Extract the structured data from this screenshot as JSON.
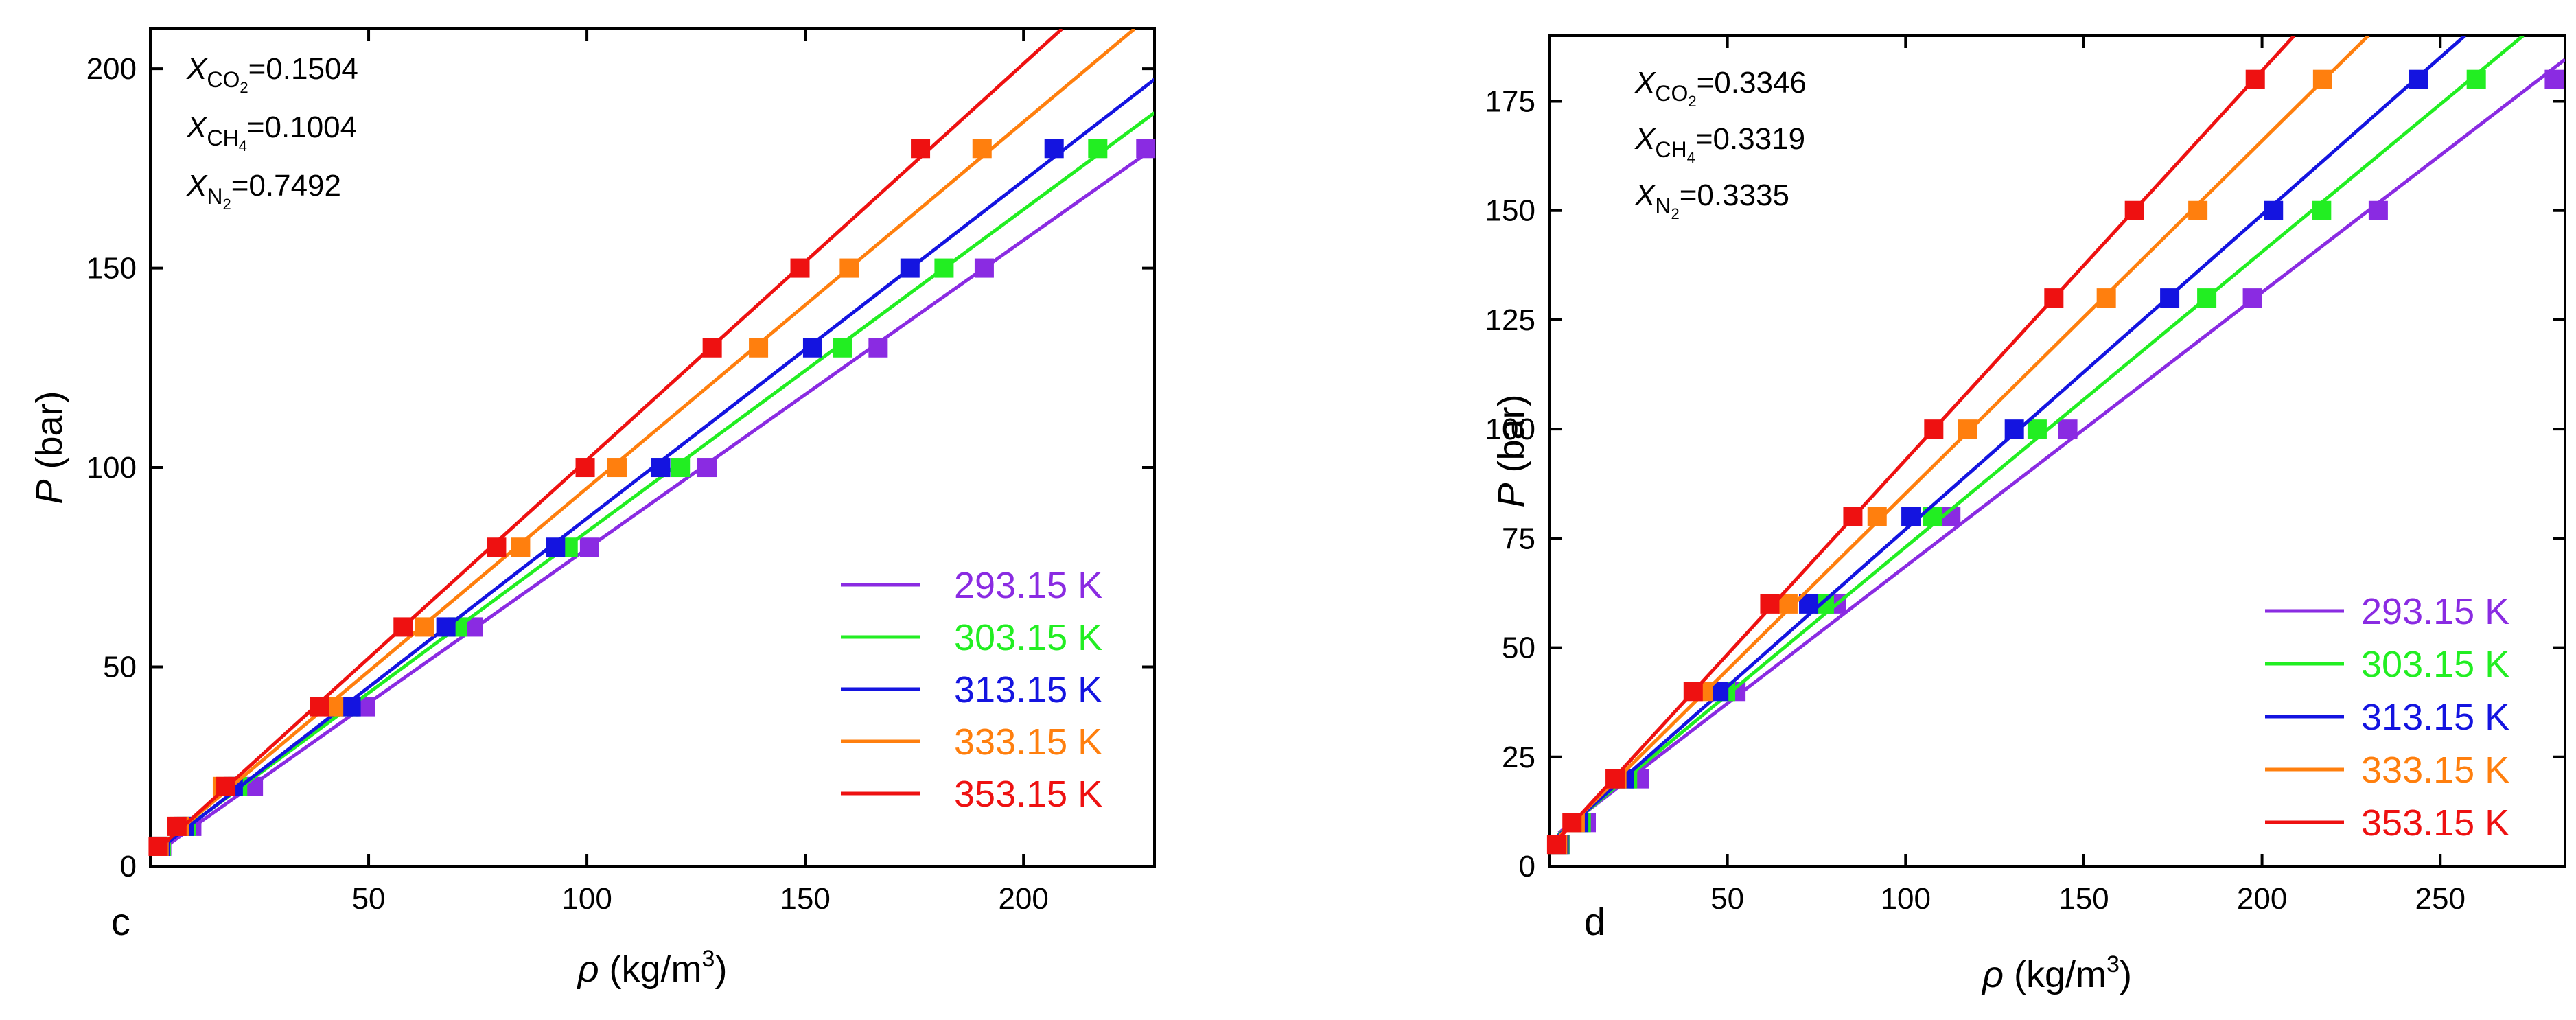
{
  "chart_data": [
    {
      "type": "scatter",
      "panel": "c",
      "xlabel_symbol": "ρ",
      "xlabel_unit": " (kg/m",
      "xlabel_exp": "3",
      "xlabel_close": ")",
      "ylabel_symbol": "P",
      "ylabel_unit": " (bar)",
      "xlim": [
        0,
        230
      ],
      "ylim": [
        0,
        210
      ],
      "xticks": [
        50,
        100,
        150,
        200
      ],
      "yticks": [
        0,
        50,
        100,
        150,
        200
      ],
      "composition": [
        {
          "sub": "CO",
          "sub2": "2",
          "value": "=0.1504"
        },
        {
          "sub": "CH",
          "sub2": "4",
          "value": "=0.1004"
        },
        {
          "sub": "N",
          "sub2": "2",
          "value": "=0.7492"
        }
      ],
      "series": [
        {
          "name": "293.15 K",
          "color": "#8a2be2",
          "x": [
            2.6,
            9.5,
            23.6,
            49.3,
            73.9,
            100.6,
            127.5,
            166.7,
            191.0,
            228.0
          ],
          "y": [
            5,
            10,
            20,
            40,
            60,
            80,
            100,
            130,
            150,
            180
          ]
        },
        {
          "name": "303.15 K",
          "color": "#22ee22",
          "x": [
            2.5,
            8.3,
            20.0,
            45.5,
            70.3,
            95.7,
            121.4,
            158.6,
            181.8,
            217.0
          ],
          "y": [
            5,
            10,
            20,
            40,
            60,
            80,
            100,
            130,
            150,
            180
          ]
        },
        {
          "name": "313.15 K",
          "color": "#1414e0",
          "x": [
            2.3,
            7.7,
            19.0,
            46.0,
            67.7,
            92.8,
            116.9,
            151.7,
            174.0,
            207.0
          ],
          "y": [
            5,
            10,
            20,
            40,
            60,
            80,
            100,
            130,
            150,
            180
          ]
        },
        {
          "name": "333.15 K",
          "color": "#ff7f0e",
          "x": [
            2.0,
            6.6,
            16.5,
            42.0,
            62.8,
            84.8,
            106.9,
            139.3,
            160.1,
            190.5
          ],
          "y": [
            5,
            10,
            20,
            40,
            60,
            80,
            100,
            130,
            150,
            180
          ]
        },
        {
          "name": "353.15 K",
          "color": "#ee1111",
          "x": [
            1.8,
            6.1,
            17.3,
            38.7,
            57.9,
            79.3,
            99.6,
            128.7,
            148.8,
            176.4
          ],
          "y": [
            5,
            10,
            20,
            40,
            60,
            80,
            100,
            130,
            150,
            180
          ]
        }
      ]
    },
    {
      "type": "scatter",
      "panel": "d",
      "xlabel_symbol": "ρ",
      "xlabel_unit": " (kg/m",
      "xlabel_exp": "3",
      "xlabel_close": ")",
      "ylabel_symbol": "P",
      "ylabel_unit": " (bar)",
      "xlim": [
        0,
        285
      ],
      "ylim": [
        0,
        190
      ],
      "xticks": [
        50,
        100,
        150,
        200,
        250
      ],
      "yticks": [
        0,
        25,
        50,
        75,
        100,
        125,
        150,
        175
      ],
      "composition": [
        {
          "sub": "CO",
          "sub2": "2",
          "value": "=0.3346"
        },
        {
          "sub": "CH",
          "sub2": "4",
          "value": "=0.3319"
        },
        {
          "sub": "N",
          "sub2": "2",
          "value": "=0.3335"
        }
      ],
      "series": [
        {
          "name": "293.15 K",
          "color": "#8a2be2",
          "x": [
            3.2,
            10.4,
            25.3,
            52.4,
            80.5,
            112.7,
            145.5,
            197.3,
            232.6,
            282.0
          ],
          "y": [
            5,
            10,
            20,
            40,
            60,
            80,
            100,
            130,
            150,
            180
          ]
        },
        {
          "name": "303.15 K",
          "color": "#22ee22",
          "x": [
            3.0,
            9.0,
            22.0,
            49.5,
            77.2,
            107.5,
            136.9,
            184.5,
            216.7,
            260.1
          ],
          "y": [
            5,
            10,
            20,
            40,
            60,
            80,
            100,
            130,
            150,
            180
          ]
        },
        {
          "name": "313.15 K",
          "color": "#1414e0",
          "x": [
            2.8,
            8.3,
            21.0,
            47.6,
            72.8,
            101.5,
            130.5,
            174.1,
            203.2,
            243.9
          ],
          "y": [
            5,
            10,
            20,
            40,
            60,
            80,
            100,
            130,
            150,
            180
          ]
        },
        {
          "name": "333.15 K",
          "color": "#ff7f0e",
          "x": [
            2.4,
            7.3,
            19.0,
            43.2,
            67.0,
            92.0,
            117.4,
            156.3,
            182.0,
            217.0
          ],
          "y": [
            5,
            10,
            20,
            40,
            60,
            80,
            100,
            130,
            150,
            180
          ]
        },
        {
          "name": "353.15 K",
          "color": "#ee1111",
          "x": [
            2.1,
            6.4,
            18.5,
            40.4,
            61.9,
            85.2,
            107.9,
            141.6,
            164.2,
            198.1
          ],
          "y": [
            5,
            10,
            20,
            40,
            60,
            80,
            100,
            130,
            150,
            180
          ]
        }
      ]
    }
  ]
}
